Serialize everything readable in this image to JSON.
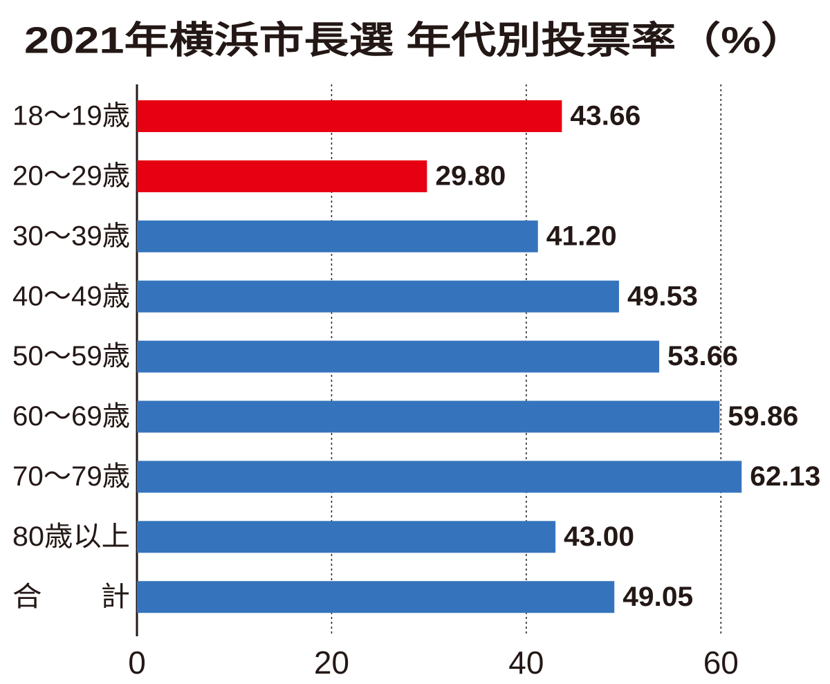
{
  "chart_data": {
    "type": "hbar",
    "title": "2021年横浜市長選 年代別投票率（%）",
    "categories": [
      "18〜19歳",
      "20〜29歳",
      "30〜39歳",
      "40〜49歳",
      "50〜59歳",
      "60〜69歳",
      "70〜79歳",
      "80歳以上",
      "合　　計"
    ],
    "values": [
      43.66,
      29.8,
      41.2,
      49.53,
      53.66,
      59.86,
      62.13,
      43,
      49.05
    ],
    "value_labels": [
      "43.66",
      "29.80",
      "41.20",
      "49.53",
      "53.66",
      "59.86",
      "62.13",
      "43.00",
      "49.05"
    ],
    "colors": [
      "#e60012",
      "#e60012",
      "#3574bc",
      "#3574bc",
      "#3574bc",
      "#3574bc",
      "#3574bc",
      "#3574bc",
      "#3574bc"
    ],
    "xlim": [
      0,
      70
    ],
    "xticks": [
      0,
      20,
      40,
      60
    ],
    "grid": true
  }
}
